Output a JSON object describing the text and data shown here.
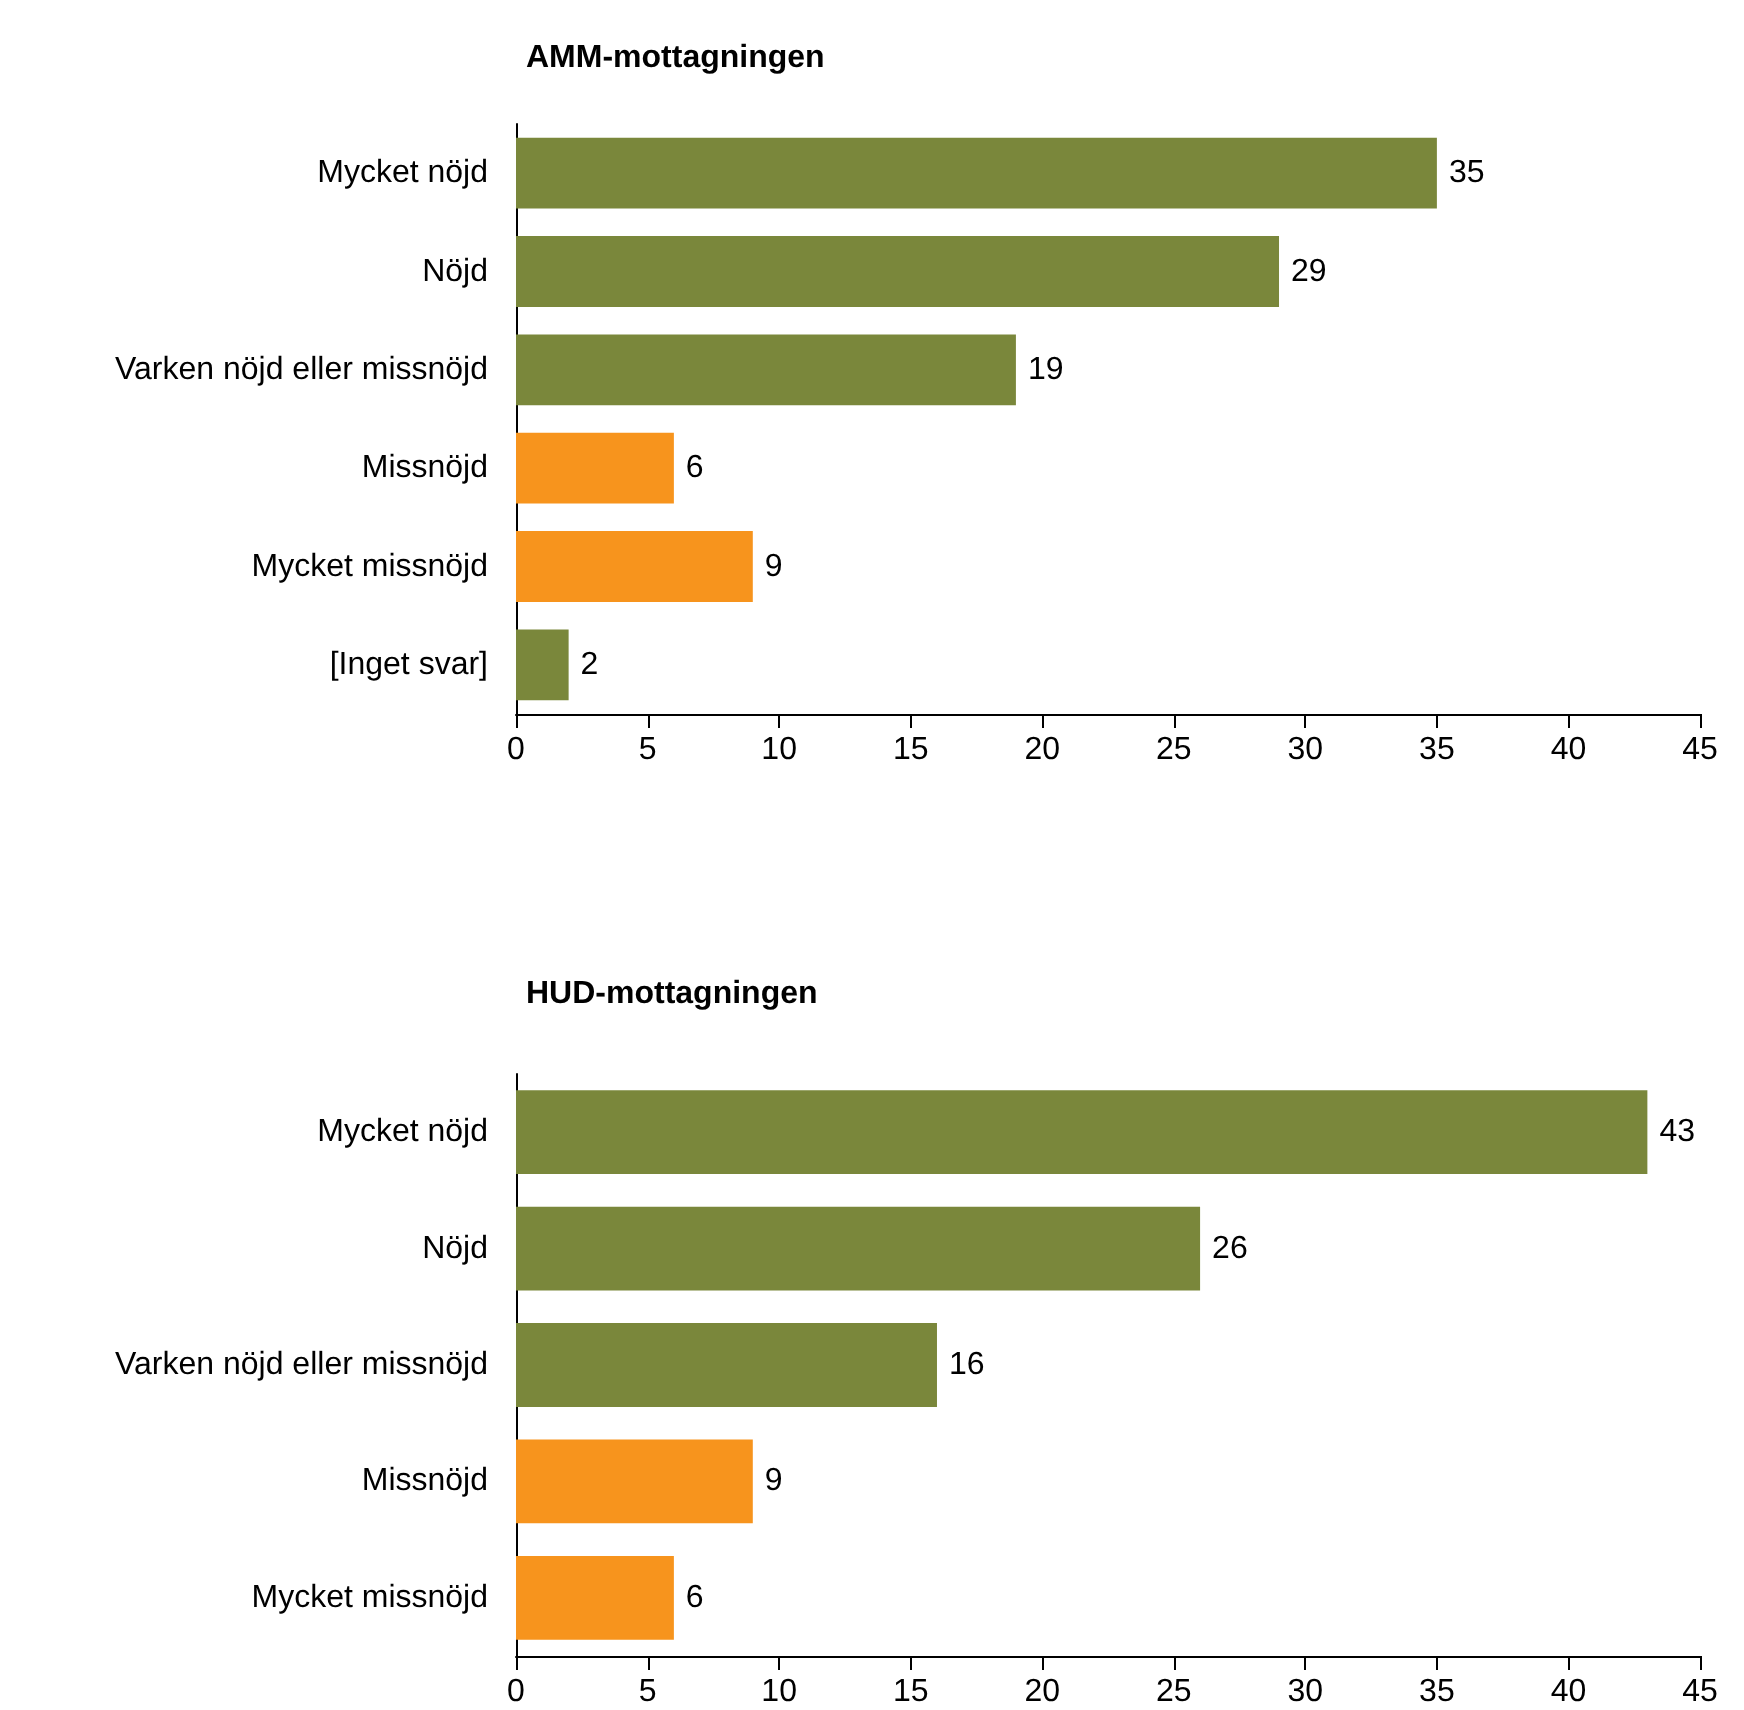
{
  "chart_data": [
    {
      "type": "bar",
      "orientation": "horizontal",
      "title": "AMM-mottagningen",
      "categories": [
        "Mycket nöjd",
        "Nöjd",
        "Varken nöjd eller missnöjd",
        "Missnöjd",
        "Mycket missnöjd",
        "[Inget svar]"
      ],
      "values": [
        35,
        29,
        19,
        6,
        9,
        2
      ],
      "colors": [
        "#7a873b",
        "#7a873b",
        "#7a873b",
        "#f7941d",
        "#f7941d",
        "#7a873b"
      ],
      "xlim": [
        0,
        45
      ],
      "xticks": [
        0,
        5,
        10,
        15,
        20,
        25,
        30,
        35,
        40,
        45
      ],
      "data_labels": true
    },
    {
      "type": "bar",
      "orientation": "horizontal",
      "title": "HUD-mottagningen",
      "categories": [
        "Mycket nöjd",
        "Nöjd",
        "Varken nöjd eller missnöjd",
        "Missnöjd",
        "Mycket missnöjd"
      ],
      "values": [
        43,
        26,
        16,
        9,
        6
      ],
      "colors": [
        "#7a873b",
        "#7a873b",
        "#7a873b",
        "#f7941d",
        "#f7941d"
      ],
      "xlim": [
        0,
        45
      ],
      "xticks": [
        0,
        5,
        10,
        15,
        20,
        25,
        30,
        35,
        40,
        45
      ],
      "data_labels": true
    }
  ]
}
